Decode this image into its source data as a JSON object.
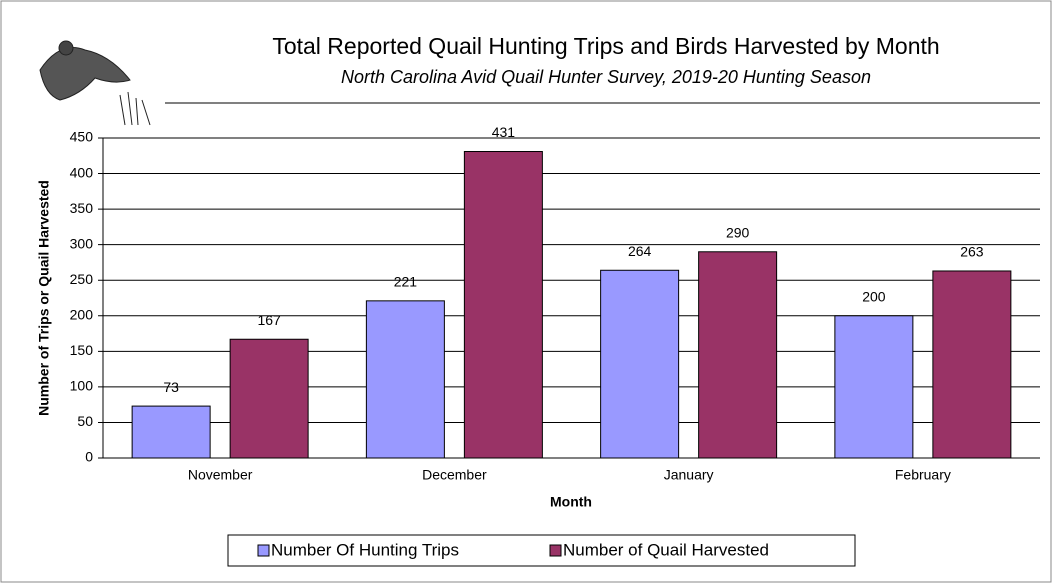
{
  "chart_data": {
    "type": "bar",
    "title": "Total Reported Quail Hunting Trips and Birds Harvested by Month",
    "subtitle": "North Carolina Avid Quail Hunter Survey, 2019-20 Hunting Season",
    "x_label": "Month",
    "y_label": "Number of Trips or Quail Harvested",
    "categories": [
      "November",
      "December",
      "January",
      "February"
    ],
    "series": [
      {
        "name": "Number Of Hunting Trips",
        "color": "#9999ff",
        "values": [
          73,
          221,
          264,
          200
        ]
      },
      {
        "name": "Number of Quail Harvested",
        "color": "#993366",
        "values": [
          167,
          431,
          290,
          263
        ]
      }
    ],
    "ylim": [
      0,
      450
    ],
    "yticks": [
      0,
      50,
      100,
      150,
      200,
      250,
      300,
      350,
      400,
      450
    ],
    "grid": true
  }
}
